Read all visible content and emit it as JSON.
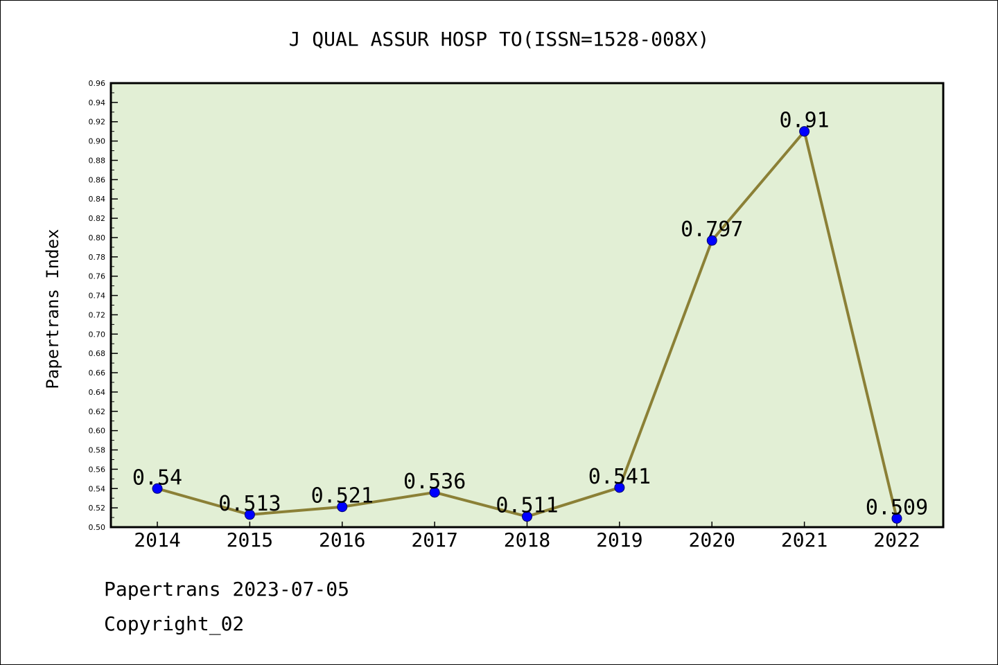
{
  "chart_data": {
    "type": "line",
    "title": "J QUAL ASSUR HOSP TO(ISSN=1528-008X)",
    "xlabel": "",
    "ylabel": "Papertrans Index",
    "categories": [
      "2014",
      "2015",
      "2016",
      "2017",
      "2018",
      "2019",
      "2020",
      "2021",
      "2022"
    ],
    "values": [
      0.54,
      0.513,
      0.521,
      0.536,
      0.511,
      0.541,
      0.797,
      0.91,
      0.509
    ],
    "value_labels": [
      "0.54",
      "0.513",
      "0.521",
      "0.536",
      "0.511",
      "0.541",
      "0.797",
      "0.91",
      "0.509"
    ],
    "ylim": [
      0.5,
      0.96
    ],
    "yticks": [
      "0.50",
      "0.52",
      "0.54",
      "0.56",
      "0.58",
      "0.60",
      "0.62",
      "0.64",
      "0.66",
      "0.68",
      "0.70",
      "0.72",
      "0.74",
      "0.76",
      "0.78",
      "0.80",
      "0.82",
      "0.84",
      "0.86",
      "0.88",
      "0.90",
      "0.92",
      "0.94",
      "0.96"
    ],
    "grid": false,
    "colors": {
      "plot_background": "#e2efd5",
      "line": "#8b8036",
      "marker": "#0000ff"
    }
  },
  "footer": {
    "line1": "Papertrans 2023-07-05",
    "line2": "Copyright_02"
  }
}
